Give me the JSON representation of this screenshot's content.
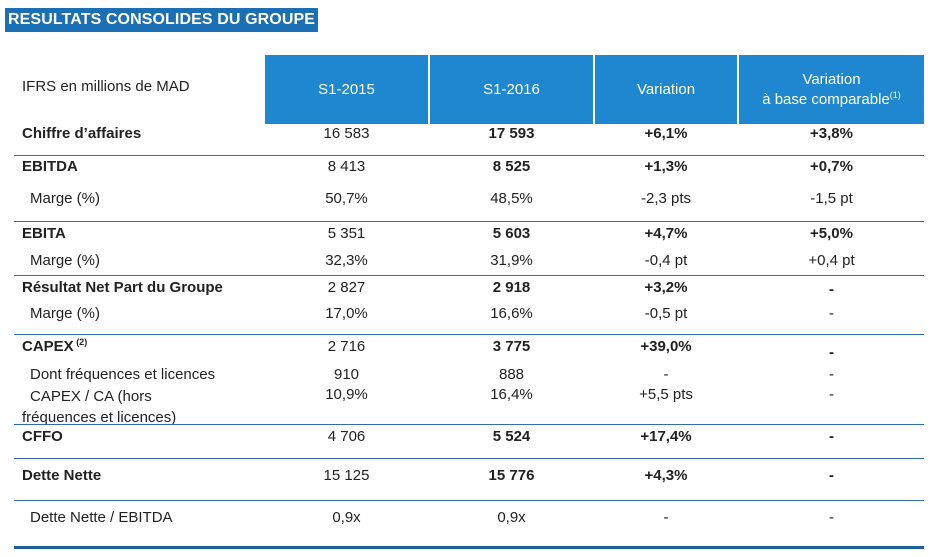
{
  "title": "RESULTATS CONSOLIDES DU GROUPE",
  "header": {
    "label": "IFRS en millions de MAD",
    "col1": "S1-2015",
    "col2": "S1-2016",
    "col3": "Variation",
    "col4_line1": "Variation",
    "col4_line2": "à base comparable",
    "col4_sup": "(1)"
  },
  "rows": [
    {
      "label": "Chiffre d’affaires",
      "v1": "16 583",
      "v2": "17 593",
      "v3": "+6,1%",
      "v4": "+3,8%"
    },
    {
      "label": "EBITDA",
      "v1": "8 413",
      "v2": "8 525",
      "v3": "+1,3%",
      "v4": "+0,7%"
    },
    {
      "label": "Marge (%)",
      "v1": "50,7%",
      "v2": "48,5%",
      "v3": "-2,3 pts",
      "v4": "-1,5 pt"
    },
    {
      "label": "EBITA",
      "v1": "5 351",
      "v2": "5 603",
      "v3": "+4,7%",
      "v4": "+5,0%"
    },
    {
      "label": "Marge (%)",
      "v1": "32,3%",
      "v2": "31,9%",
      "v3": "-0,4 pt",
      "v4": "+0,4 pt"
    },
    {
      "label": "Résultat Net Part du Groupe",
      "v1": "2 827",
      "v2": "2 918",
      "v3": "+3,2%",
      "v4": "-"
    },
    {
      "label": "Marge (%)",
      "v1": "17,0%",
      "v2": "16,6%",
      "v3": "-0,5 pt",
      "v4": "-"
    },
    {
      "label": "CAPEX",
      "sup": "(2)",
      "v1": "2 716",
      "v2": "3 775",
      "v3": "+39,0%",
      "v4": "-"
    },
    {
      "label": "Dont fréquences et licences",
      "v1": "910",
      "v2": "888",
      "v3": "-",
      "v4": "-"
    },
    {
      "label_line1": "CAPEX / CA (hors",
      "label_line2": "fréquences et licences)",
      "v1": "10,9%",
      "v2": "16,4%",
      "v3": "+5,5 pts",
      "v4": "-"
    },
    {
      "label": "CFFO",
      "v1": "4 706",
      "v2": "5 524",
      "v3": "+17,4%",
      "v4": "-"
    },
    {
      "label": "Dette Nette",
      "v1": "15 125",
      "v2": "15 776",
      "v3": "+4,3%",
      "v4": "-"
    },
    {
      "label": "Dette Nette / EBITDA",
      "v1": "0,9x",
      "v2": "0,9x",
      "v3": "-",
      "v4": "-"
    }
  ]
}
